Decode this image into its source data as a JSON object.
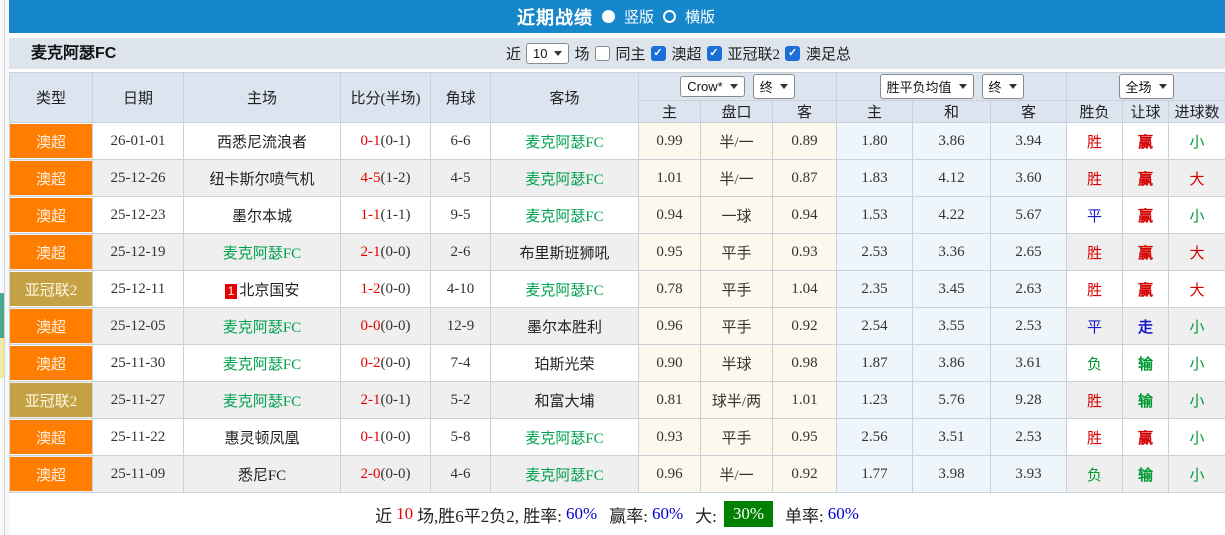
{
  "colors": {
    "titlebar_bg": "#1787cb",
    "filterbar_bg": "#dde4eb",
    "header_bg": "#dbe4ef",
    "league_aus_orange": "#ff7e00",
    "league_acl2_gold": "#c3a144",
    "self_team_green": "#00a050",
    "win_red": "#d60000",
    "draw_blue": "#1919c8",
    "lose_green": "#009933",
    "score_red": "#e60000",
    "rate_blue": "#0000cc",
    "big_rate_green_bg": "#008000",
    "checkbox_blue": "#1b6fd8"
  },
  "titlebar": {
    "title": "近期战绩",
    "vertical_label": "竖版",
    "horizontal_label": "横版",
    "selected_option": "竖版"
  },
  "filterbar": {
    "team": "麦克阿瑟FC",
    "near_label": "近",
    "matches_value": "10",
    "matches_unit": "场",
    "same_home_label": "同主",
    "filters": [
      {
        "label": "澳超",
        "checked": true
      },
      {
        "label": "亚冠联2",
        "checked": true
      },
      {
        "label": "澳足总",
        "checked": true
      }
    ]
  },
  "table": {
    "headers": {
      "type": "类型",
      "date": "日期",
      "home": "主场",
      "score": "比分(半场)",
      "corner": "角球",
      "away": "客场",
      "handicap_source": "Crow*",
      "handicap_period": "终",
      "handicap_sub": [
        "主",
        "盘口",
        "客"
      ],
      "odds_source": "胜平负均值",
      "odds_period": "终",
      "odds_sub": [
        "主",
        "和",
        "客"
      ],
      "scope": "全场",
      "result_sub": [
        "胜负",
        "让球",
        "进球数"
      ]
    },
    "rows": [
      {
        "league": "aus",
        "type": "澳超",
        "date": "26-01-01",
        "home": "西悉尼流浪者",
        "home_self": false,
        "home_badge": "",
        "score_ft": "0-1",
        "score_ht": "(0-1)",
        "corner": "6-6",
        "away": "麦克阿瑟FC",
        "away_self": true,
        "h_home": "0.99",
        "h_line": "半/一",
        "h_away": "0.89",
        "o_home": "1.80",
        "o_draw": "3.86",
        "o_away": "3.94",
        "result": "胜",
        "result_color": "red",
        "handicap_result": "赢",
        "handicap_color": "red",
        "goals": "小",
        "goals_color": "green"
      },
      {
        "league": "aus",
        "type": "澳超",
        "date": "25-12-26",
        "home": "纽卡斯尔喷气机",
        "home_self": false,
        "home_badge": "",
        "score_ft": "4-5",
        "score_ht": "(1-2)",
        "corner": "4-5",
        "away": "麦克阿瑟FC",
        "away_self": true,
        "h_home": "1.01",
        "h_line": "半/一",
        "h_away": "0.87",
        "o_home": "1.83",
        "o_draw": "4.12",
        "o_away": "3.60",
        "result": "胜",
        "result_color": "red",
        "handicap_result": "赢",
        "handicap_color": "red",
        "goals": "大",
        "goals_color": "red"
      },
      {
        "league": "aus",
        "type": "澳超",
        "date": "25-12-23",
        "home": "墨尔本城",
        "home_self": false,
        "home_badge": "",
        "score_ft": "1-1",
        "score_ht": "(1-1)",
        "corner": "9-5",
        "away": "麦克阿瑟FC",
        "away_self": true,
        "h_home": "0.94",
        "h_line": "一球",
        "h_away": "0.94",
        "o_home": "1.53",
        "o_draw": "4.22",
        "o_away": "5.67",
        "result": "平",
        "result_color": "blue",
        "handicap_result": "赢",
        "handicap_color": "red",
        "goals": "小",
        "goals_color": "green"
      },
      {
        "league": "aus",
        "type": "澳超",
        "date": "25-12-19",
        "home": "麦克阿瑟FC",
        "home_self": true,
        "home_badge": "",
        "score_ft": "2-1",
        "score_ht": "(0-0)",
        "corner": "2-6",
        "away": "布里斯班狮吼",
        "away_self": false,
        "h_home": "0.95",
        "h_line": "平手",
        "h_away": "0.93",
        "o_home": "2.53",
        "o_draw": "3.36",
        "o_away": "2.65",
        "result": "胜",
        "result_color": "red",
        "handicap_result": "赢",
        "handicap_color": "red",
        "goals": "大",
        "goals_color": "red"
      },
      {
        "league": "acl2",
        "type": "亚冠联2",
        "date": "25-12-11",
        "home": "北京国安",
        "home_self": false,
        "home_badge": "1",
        "score_ft": "1-2",
        "score_ht": "(0-0)",
        "corner": "4-10",
        "away": "麦克阿瑟FC",
        "away_self": true,
        "h_home": "0.78",
        "h_line": "平手",
        "h_away": "1.04",
        "o_home": "2.35",
        "o_draw": "3.45",
        "o_away": "2.63",
        "result": "胜",
        "result_color": "red",
        "handicap_result": "赢",
        "handicap_color": "red",
        "goals": "大",
        "goals_color": "red"
      },
      {
        "league": "aus",
        "type": "澳超",
        "date": "25-12-05",
        "home": "麦克阿瑟FC",
        "home_self": true,
        "home_badge": "",
        "score_ft": "0-0",
        "score_ht": "(0-0)",
        "corner": "12-9",
        "away": "墨尔本胜利",
        "away_self": false,
        "h_home": "0.96",
        "h_line": "平手",
        "h_away": "0.92",
        "o_home": "2.54",
        "o_draw": "3.55",
        "o_away": "2.53",
        "result": "平",
        "result_color": "blue",
        "handicap_result": "走",
        "handicap_color": "blue",
        "goals": "小",
        "goals_color": "green"
      },
      {
        "league": "aus",
        "type": "澳超",
        "date": "25-11-30",
        "home": "麦克阿瑟FC",
        "home_self": true,
        "home_badge": "",
        "score_ft": "0-2",
        "score_ht": "(0-0)",
        "corner": "7-4",
        "away": "珀斯光荣",
        "away_self": false,
        "h_home": "0.90",
        "h_line": "半球",
        "h_away": "0.98",
        "o_home": "1.87",
        "o_draw": "3.86",
        "o_away": "3.61",
        "result": "负",
        "result_color": "green",
        "handicap_result": "输",
        "handicap_color": "green",
        "goals": "小",
        "goals_color": "green"
      },
      {
        "league": "acl2",
        "type": "亚冠联2",
        "date": "25-11-27",
        "home": "麦克阿瑟FC",
        "home_self": true,
        "home_badge": "",
        "score_ft": "2-1",
        "score_ht": "(0-1)",
        "corner": "5-2",
        "away": "和富大埔",
        "away_self": false,
        "h_home": "0.81",
        "h_line": "球半/两",
        "h_away": "1.01",
        "o_home": "1.23",
        "o_draw": "5.76",
        "o_away": "9.28",
        "result": "胜",
        "result_color": "red",
        "handicap_result": "输",
        "handicap_color": "green",
        "goals": "小",
        "goals_color": "green"
      },
      {
        "league": "aus",
        "type": "澳超",
        "date": "25-11-22",
        "home": "惠灵顿凤凰",
        "home_self": false,
        "home_badge": "",
        "score_ft": "0-1",
        "score_ht": "(0-0)",
        "corner": "5-8",
        "away": "麦克阿瑟FC",
        "away_self": true,
        "h_home": "0.93",
        "h_line": "平手",
        "h_away": "0.95",
        "o_home": "2.56",
        "o_draw": "3.51",
        "o_away": "2.53",
        "result": "胜",
        "result_color": "red",
        "handicap_result": "赢",
        "handicap_color": "red",
        "goals": "小",
        "goals_color": "green"
      },
      {
        "league": "aus",
        "type": "澳超",
        "date": "25-11-09",
        "home": "悉尼FC",
        "home_self": false,
        "home_badge": "",
        "score_ft": "2-0",
        "score_ht": "(0-0)",
        "corner": "4-6",
        "away": "麦克阿瑟FC",
        "away_self": true,
        "h_home": "0.96",
        "h_line": "半/一",
        "h_away": "0.92",
        "o_home": "1.77",
        "o_draw": "3.98",
        "o_away": "3.93",
        "result": "负",
        "result_color": "green",
        "handicap_result": "输",
        "handicap_color": "green",
        "goals": "小",
        "goals_color": "green"
      }
    ]
  },
  "summary": {
    "near_label": "近",
    "count": "10",
    "record": "场,胜6平2负2, 胜率:",
    "win_rate": "60%",
    "win_odds_label": "赢率:",
    "win_odds_rate": "60%",
    "big_label": "大:",
    "big_rate": "30%",
    "single_label": "单率:",
    "single_rate": "60%"
  }
}
